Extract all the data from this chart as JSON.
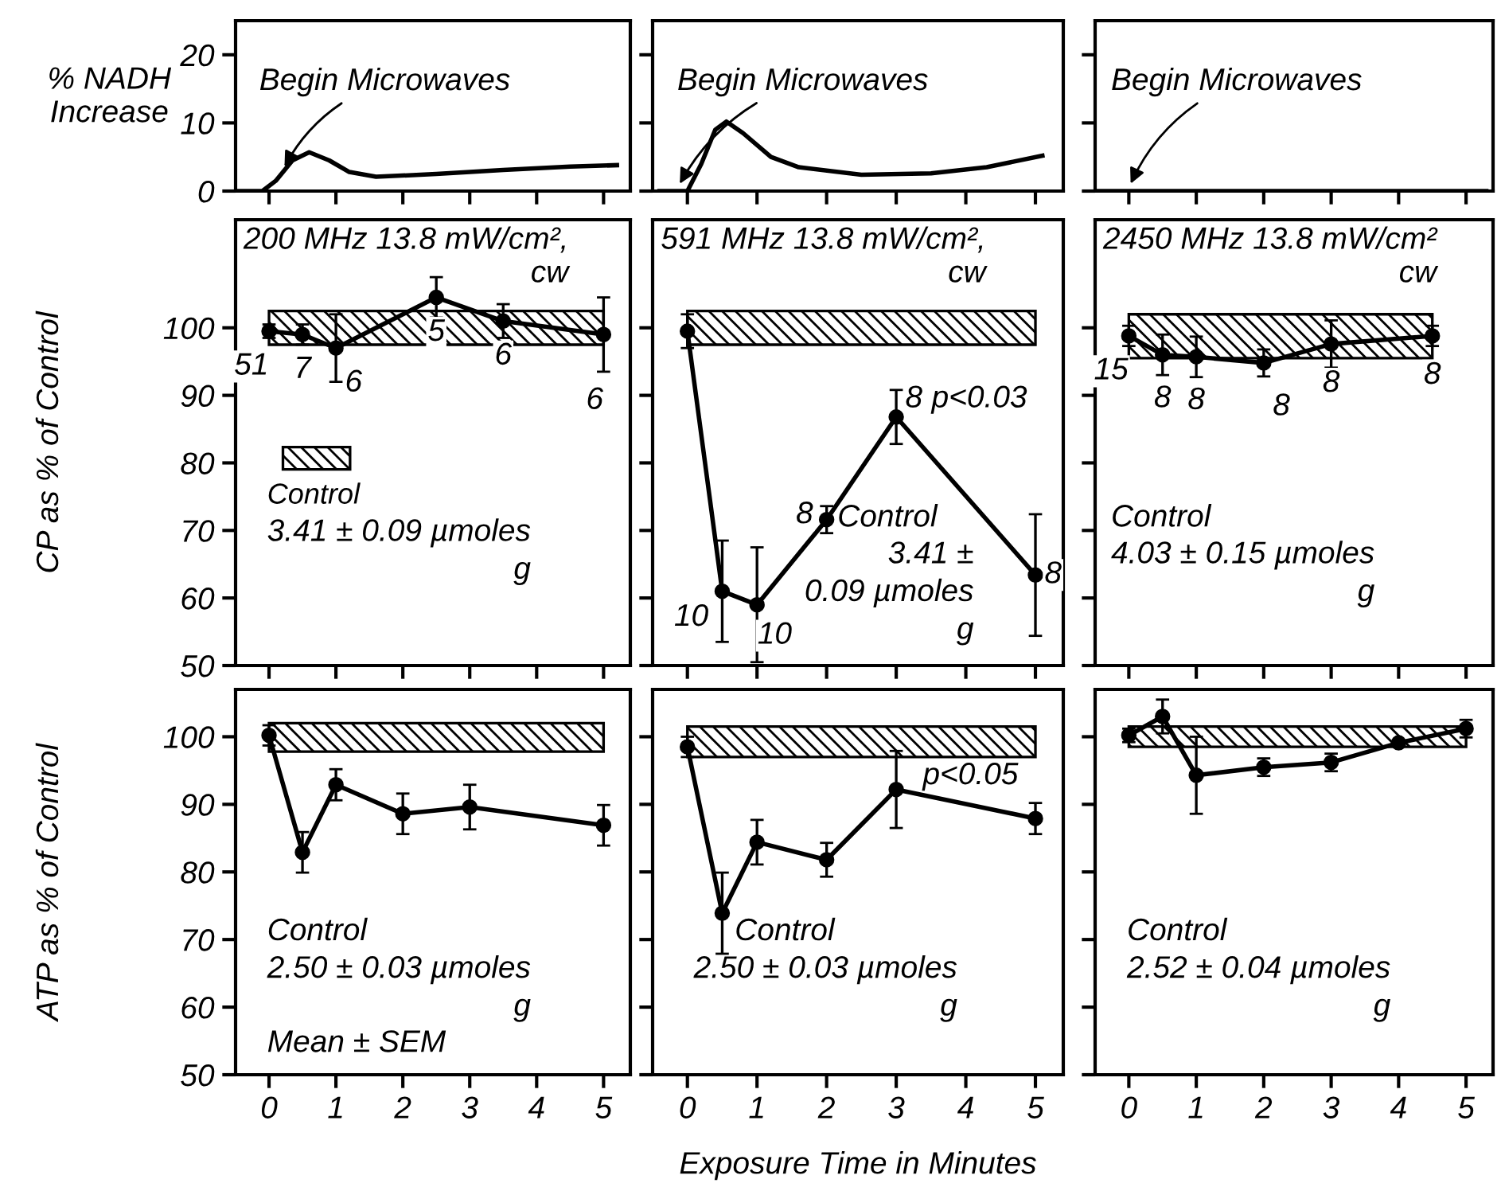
{
  "chart_data": [
    {
      "type": "line",
      "ylabel": "% NADH\nIncrease",
      "x": [
        -0.5,
        -0.1,
        0.1,
        0.35,
        0.6,
        0.9,
        1.2,
        1.6,
        2.5,
        3.5,
        4.5,
        5.2
      ],
      "values": [
        0,
        0,
        1.5,
        4.5,
        5.7,
        4.5,
        2.8,
        2.1,
        2.5,
        3.1,
        3.6,
        3.8
      ],
      "color": "#000000",
      "xlim": [
        -0.5,
        5.4
      ],
      "ylim": [
        0,
        25
      ],
      "xticks": [
        0,
        1,
        2,
        3,
        4,
        5
      ],
      "yticks": [
        0,
        10,
        20
      ],
      "tick_labels": "y",
      "annotations": [
        {
          "text": "Begin Microwaves",
          "x": 0.2,
          "y": 3
        }
      ]
    },
    {
      "type": "line",
      "x": [
        -0.4,
        0,
        0.2,
        0.4,
        0.56,
        0.8,
        1.2,
        1.6,
        2.5,
        3.5,
        4.3,
        5.1
      ],
      "values": [
        0,
        0,
        4,
        9,
        10.2,
        8.5,
        5,
        3.5,
        2.4,
        2.6,
        3.5,
        5.2
      ],
      "color": "#000000",
      "xlim": [
        -0.5,
        5.4
      ],
      "ylim": [
        0,
        25
      ],
      "xticks": [
        0,
        1,
        2,
        3,
        4,
        5
      ],
      "yticks": [
        0,
        10,
        20
      ],
      "tick_labels": false,
      "annotations": [
        {
          "text": "Begin Microwaves",
          "x": -0.14,
          "y": 0.5
        }
      ]
    },
    {
      "type": "line",
      "x": [
        -0.5,
        5.3
      ],
      "values": [
        0,
        0
      ],
      "color": "#000000",
      "xlim": [
        -0.5,
        5.4
      ],
      "ylim": [
        0,
        25
      ],
      "xticks": [
        0,
        1,
        2,
        3,
        4,
        5
      ],
      "yticks": [
        0,
        10,
        20
      ],
      "tick_labels": false,
      "annotations": [
        {
          "text": "Begin Microwaves",
          "x": 0,
          "y": 0.5
        }
      ]
    },
    {
      "type": "line",
      "title": "200 MHz 13.8 mW/cm²,\ncw",
      "ylabel": "CP as % of Control",
      "x": [
        0,
        0.5,
        1,
        2.5,
        3.5,
        5
      ],
      "values": [
        99.5,
        99,
        97,
        104.5,
        101,
        99
      ],
      "errors": [
        1,
        1.5,
        5,
        3,
        2.5,
        5.5
      ],
      "color": "#000000",
      "marker": "circle",
      "xlim": [
        -0.5,
        5.4
      ],
      "ylim": [
        50,
        116
      ],
      "xticks": [
        0,
        1,
        2,
        3,
        4,
        5
      ],
      "yticks": [
        50,
        60,
        70,
        80,
        90,
        100
      ],
      "tick_labels": "y",
      "bands": [
        {
          "axis": "y",
          "from": 97.5,
          "to": 102.5,
          "label": "Control"
        }
      ],
      "annotations": [
        {
          "text": "51",
          "x": 0,
          "y": 99.5
        },
        {
          "text": "7",
          "x": 0.5,
          "y": 99
        },
        {
          "text": "6",
          "x": 1,
          "y": 97
        },
        {
          "text": "5",
          "x": 2.5,
          "y": 104.5
        },
        {
          "text": "6",
          "x": 3.5,
          "y": 101
        },
        {
          "text": "6",
          "x": 5,
          "y": 99
        },
        "3.41 ± 0.09 µmoles\ng"
      ]
    },
    {
      "type": "line",
      "title": "591 MHz 13.8 mW/cm²,\ncw",
      "x": [
        0,
        0.5,
        1,
        2,
        3,
        5
      ],
      "values": [
        99.5,
        61,
        59,
        71.6,
        86.8,
        63.4
      ],
      "errors": [
        2.5,
        7.5,
        8.5,
        2,
        4,
        9
      ],
      "color": "#000000",
      "marker": "circle",
      "xlim": [
        -0.5,
        5.4
      ],
      "ylim": [
        50,
        116
      ],
      "xticks": [
        0,
        1,
        2,
        3,
        4,
        5
      ],
      "yticks": [
        50,
        60,
        70,
        80,
        90,
        100
      ],
      "tick_labels": false,
      "bands": [
        {
          "axis": "y",
          "from": 97.5,
          "to": 102.5
        }
      ],
      "annotations": [
        {
          "text": "10",
          "x": 0.5,
          "y": 61
        },
        {
          "text": "10",
          "x": 1,
          "y": 59
        },
        {
          "text": "8",
          "x": 2,
          "y": 71.6
        },
        {
          "text": "8",
          "x": 3,
          "y": 86.8
        },
        {
          "text": "p<0.03",
          "x": 3,
          "y": 86.8
        },
        {
          "text": "8",
          "x": 5,
          "y": 63.4
        },
        "Control",
        "3.41 ±\n0.09 µmoles\ng"
      ]
    },
    {
      "type": "line",
      "title": "2450 MHz 13.8 mW/cm²\ncw",
      "x": [
        0,
        0.5,
        1,
        2,
        3,
        4.5
      ],
      "values": [
        98.8,
        96,
        95.7,
        94.8,
        97.6,
        98.8
      ],
      "errors": [
        1.5,
        3,
        3,
        2,
        3.5,
        1.5
      ],
      "color": "#000000",
      "marker": "circle",
      "xlim": [
        -0.5,
        5.4
      ],
      "ylim": [
        50,
        116
      ],
      "xticks": [
        0,
        1,
        2,
        3,
        4,
        5
      ],
      "yticks": [
        50,
        60,
        70,
        80,
        90,
        100
      ],
      "tick_labels": false,
      "bands": [
        {
          "axis": "y",
          "from": 95.5,
          "to": 102
        }
      ],
      "annotations": [
        {
          "text": "15",
          "x": 0,
          "y": 98.8
        },
        {
          "text": "8",
          "x": 0.5,
          "y": 96
        },
        {
          "text": "8",
          "x": 1,
          "y": 95.7
        },
        {
          "text": "8",
          "x": 2,
          "y": 94.8
        },
        {
          "text": "8",
          "x": 3,
          "y": 97.6
        },
        {
          "text": "8",
          "x": 4.5,
          "y": 98.8
        },
        "Control",
        "4.03 ± 0.15 µmoles\ng"
      ]
    },
    {
      "type": "line",
      "ylabel": "ATP as % of Control",
      "x": [
        0,
        0.5,
        1,
        2,
        3,
        5
      ],
      "values": [
        100.2,
        82.9,
        92.9,
        88.6,
        89.6,
        86.9
      ],
      "errors": [
        1.5,
        3,
        2.3,
        3,
        3.3,
        3
      ],
      "color": "#000000",
      "marker": "circle",
      "xlim": [
        -0.5,
        5.4
      ],
      "ylim": [
        50,
        107
      ],
      "xticks": [
        0,
        1,
        2,
        3,
        4,
        5
      ],
      "yticks": [
        50,
        60,
        70,
        80,
        90,
        100
      ],
      "bands": [
        {
          "axis": "y",
          "from": 97.8,
          "to": 102
        }
      ],
      "annotations": [
        "Control",
        "2.50 ± 0.03 µmoles\ng",
        "Mean ± SEM"
      ]
    },
    {
      "type": "line",
      "xlabel": "Exposure Time in Minutes",
      "x": [
        0,
        0.5,
        1,
        2,
        3,
        5
      ],
      "values": [
        98.5,
        73.9,
        84.4,
        81.8,
        92.2,
        87.9
      ],
      "errors": [
        1.5,
        6,
        3.3,
        2.5,
        5.7,
        2.3
      ],
      "color": "#000000",
      "marker": "circle",
      "xlim": [
        -0.5,
        5.4
      ],
      "ylim": [
        50,
        107
      ],
      "xticks": [
        0,
        1,
        2,
        3,
        4,
        5
      ],
      "yticks": [
        50,
        60,
        70,
        80,
        90,
        100
      ],
      "tick_labels": "x",
      "bands": [
        {
          "axis": "y",
          "from": 97,
          "to": 101.5
        }
      ],
      "annotations": [
        {
          "text": "p<0.05",
          "x": 3,
          "y": 92.2
        },
        "Control",
        "2.50 ± 0.03 µmoles\ng"
      ]
    },
    {
      "type": "line",
      "x": [
        0,
        0.5,
        1,
        2,
        3,
        4,
        5
      ],
      "values": [
        100.2,
        103,
        94.3,
        95.5,
        96.2,
        99.1,
        101.2
      ],
      "errors": [
        1,
        2.5,
        5.7,
        1.3,
        1.3,
        null,
        1.3
      ],
      "color": "#000000",
      "marker": "circle",
      "xlim": [
        -0.5,
        5.4
      ],
      "ylim": [
        50,
        107
      ],
      "xticks": [
        0,
        1,
        2,
        3,
        4,
        5
      ],
      "yticks": [
        50,
        60,
        70,
        80,
        90,
        100
      ],
      "tick_labels": "x",
      "bands": [
        {
          "axis": "y",
          "from": 98.5,
          "to": 101.5
        }
      ],
      "annotations": [
        "Control",
        "2.52 ± 0.04 µmoles\ng"
      ]
    }
  ]
}
